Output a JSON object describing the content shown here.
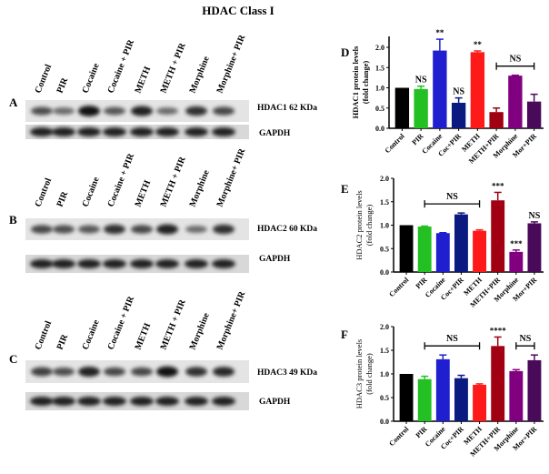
{
  "title": "HDAC Class I",
  "lanes": [
    "Control",
    "PIR",
    "Cocaine",
    "Cocaine + PIR",
    "METH",
    "METH + PIR",
    "Morphine",
    "Morphine+ PIR"
  ],
  "blots": [
    {
      "panel": "A",
      "target_label": "HDAC1 62 KDa",
      "loading_label": "GAPDH"
    },
    {
      "panel": "B",
      "target_label": "HDAC2 60 KDa",
      "loading_label": "GAPDH"
    },
    {
      "panel": "C",
      "target_label": "HDAC3 49 KDa",
      "loading_label": "GAPDH"
    }
  ],
  "colors": [
    "#000000",
    "#22c022",
    "#1f1fd0",
    "#0b1a80",
    "#ff1a1a",
    "#a00012",
    "#80007f",
    "#4a0a5a"
  ],
  "chart_data": [
    {
      "panel": "D",
      "type": "bar",
      "ylabel": [
        "HDAC1 protein levels",
        "(fold change)"
      ],
      "categories": [
        "Control",
        "PIR",
        "Cocaine",
        "Coc+PIR",
        "METH",
        "METH+PIR",
        "Morphine",
        "Mor+PIR"
      ],
      "values": [
        1.0,
        0.97,
        1.92,
        0.63,
        1.88,
        0.4,
        1.3,
        0.66
      ],
      "errors": [
        0,
        0.07,
        0.28,
        0.12,
        0.03,
        0.1,
        0.01,
        0.18
      ],
      "ylim": [
        0,
        2.25
      ],
      "yticks": [
        "0.0",
        "0.5",
        "1.0",
        "1.5",
        "2.0"
      ],
      "annotations": [
        {
          "text": "NS",
          "at": 1
        },
        {
          "text": "**",
          "at": 2
        },
        {
          "text": "NS",
          "at": 3
        },
        {
          "text": "**",
          "at": 4
        },
        {
          "text": "NS",
          "from": 5,
          "to": 7
        }
      ]
    },
    {
      "panel": "E",
      "type": "bar",
      "ylabel": [
        "HDAC2 protein levels",
        "(fold change)"
      ],
      "categories": [
        "Control",
        "PIR",
        "Cocaine",
        "Coc+PIR",
        "METH",
        "METH+PIR",
        "Morphine",
        "Mor+PIR"
      ],
      "values": [
        1.0,
        0.97,
        0.83,
        1.23,
        0.88,
        1.53,
        0.43,
        1.04
      ],
      "errors": [
        0,
        0.01,
        0.01,
        0.03,
        0.02,
        0.17,
        0.04,
        0.03
      ],
      "ylim": [
        0,
        2.0
      ],
      "yticks": [
        "0.0",
        "0.5",
        "1.0",
        "1.5",
        "2.0"
      ],
      "annotations": [
        {
          "text": "NS",
          "from": 1,
          "to": 4
        },
        {
          "text": "***",
          "at": 5
        },
        {
          "text": "***",
          "at": 6
        },
        {
          "text": "NS",
          "at": 7
        }
      ]
    },
    {
      "panel": "F",
      "type": "bar",
      "ylabel": [
        "HDAC3 protein levels",
        "(fold change)"
      ],
      "categories": [
        "Control",
        "PIR",
        "Cocaine",
        "Coc+PIR",
        "METH",
        "METH+PIR",
        "Morphine",
        "Mor+PIR"
      ],
      "values": [
        1.0,
        0.89,
        1.31,
        0.91,
        0.77,
        1.59,
        1.06,
        1.29
      ],
      "errors": [
        0,
        0.06,
        0.09,
        0.06,
        0.02,
        0.19,
        0.03,
        0.11
      ],
      "ylim": [
        0,
        2.0
      ],
      "yticks": [
        "0.0",
        "0.5",
        "1.0",
        "1.5",
        "2.0"
      ],
      "annotations": [
        {
          "text": "NS",
          "from": 1,
          "to": 4
        },
        {
          "text": "****",
          "at": 5
        },
        {
          "text": "NS",
          "from": 6,
          "to": 7
        }
      ]
    }
  ]
}
